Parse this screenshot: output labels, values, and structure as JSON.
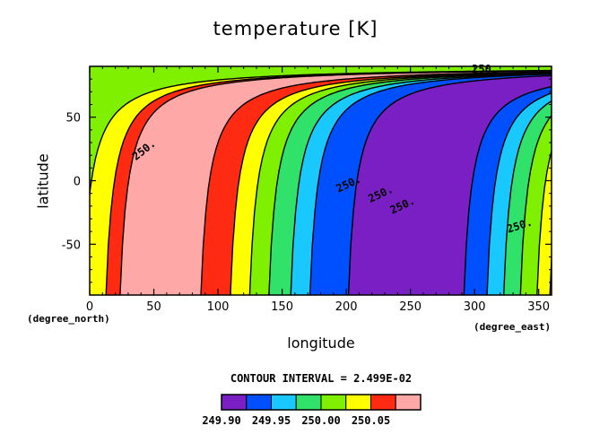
{
  "chart_data": {
    "type": "heatmap",
    "title": "temperature [K]",
    "xlabel": "longitude",
    "ylabel": "latitude",
    "x_unit": "(degree_east)",
    "y_unit": "(degree_north)",
    "xlim": [
      0,
      360
    ],
    "ylim": [
      -90,
      90
    ],
    "x_ticks": [
      "0",
      "50",
      "100",
      "150",
      "200",
      "250",
      "300",
      "350"
    ],
    "y_ticks": [
      "50",
      "0",
      "-50"
    ],
    "contour_interval_text": "CONTOUR INTERVAL = 2.499E-02",
    "contour_labels": [
      "250.",
      "250.",
      "250.",
      "250.",
      "250.",
      "250."
    ],
    "colorbar": {
      "colors": [
        "#7a1fc4",
        "#0050ff",
        "#19c8ff",
        "#30e26a",
        "#7ef000",
        "#ffff00",
        "#ff2a12",
        "#ffa8a8"
      ],
      "tick_labels": [
        "249.90",
        "249.95",
        "250.00",
        "250.05"
      ]
    },
    "note": ""
  }
}
